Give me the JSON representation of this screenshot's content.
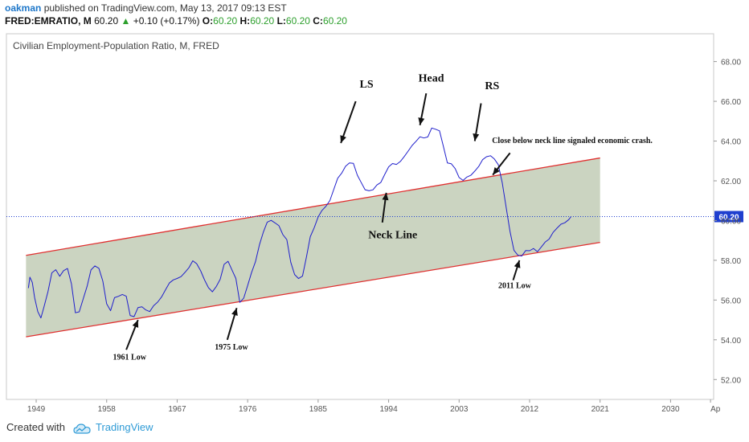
{
  "header": {
    "author": "oakman",
    "published_text": "published on TradingView.com, May 13, 2017 09:13 EST",
    "symbol": "FRED:EMRATIO, M",
    "last": "60.20",
    "change_arrow": "▲",
    "change": "+0.10 (+0.17%)",
    "o_label": "O:",
    "o_value": "60.20",
    "h_label": "H:",
    "h_value": "60.20",
    "l_label": "L:",
    "l_value": "60.20",
    "c_label": "C:",
    "c_value": "60.20"
  },
  "footer": {
    "created_with": "Created with",
    "brand": "TradingView"
  },
  "colors": {
    "series": "#1f1fcc",
    "channel_line": "#e03030",
    "channel_fill": "#c2cdb6",
    "price_badge": "#1f3fcf",
    "up": "#2ea02e"
  },
  "chart_data": {
    "type": "line",
    "title": "Civilian Employment-Population Ratio, M, FRED",
    "y_ticks": [
      "68.00",
      "66.00",
      "64.00",
      "62.00",
      "60.00",
      "58.00",
      "56.00",
      "54.00",
      "52.00"
    ],
    "ylim": [
      51.0,
      69.4
    ],
    "x_ticks": [
      "1949",
      "1958",
      "1967",
      "1976",
      "1985",
      "1994",
      "2003",
      "2012",
      "2021",
      "2030",
      "Ap"
    ],
    "xlim": [
      1945.2,
      2035.5
    ],
    "last_price_label": "60.20",
    "last_price": 60.2,
    "series": [
      {
        "x": [
          1948.0,
          1948.2,
          1948.5,
          1948.8,
          1949.2,
          1949.6,
          1950.0,
          1950.5,
          1951.0,
          1951.5,
          1952.0,
          1952.5,
          1953.0,
          1953.5,
          1954.0,
          1954.5,
          1955.0,
          1955.5,
          1956.0,
          1956.5,
          1957.0,
          1957.5,
          1958.0,
          1958.5,
          1959.0,
          1959.5,
          1960.0,
          1960.5,
          1961.0,
          1961.5,
          1962.0,
          1962.5,
          1963.0,
          1963.5,
          1964.0,
          1964.5,
          1965.0,
          1965.5,
          1966.0,
          1966.5,
          1967.0,
          1967.5,
          1968.0,
          1968.5,
          1969.0,
          1969.5,
          1970.0,
          1970.5,
          1971.0,
          1971.5,
          1972.0,
          1972.5,
          1973.0,
          1973.5,
          1974.0,
          1974.5,
          1975.0,
          1975.5,
          1976.0,
          1976.5,
          1977.0,
          1977.5,
          1978.0,
          1978.5,
          1979.0,
          1979.5,
          1980.0,
          1980.5,
          1981.0,
          1981.5,
          1982.0,
          1982.5,
          1983.0,
          1983.5,
          1984.0,
          1984.5,
          1985.0,
          1985.5,
          1986.0,
          1986.5,
          1987.0,
          1987.5,
          1988.0,
          1988.5,
          1989.0,
          1989.5,
          1990.0,
          1990.5,
          1991.0,
          1991.5,
          1992.0,
          1992.5,
          1993.0,
          1993.5,
          1994.0,
          1994.5,
          1995.0,
          1995.5,
          1996.0,
          1996.5,
          1997.0,
          1997.5,
          1998.0,
          1998.5,
          1999.0,
          1999.5,
          2000.0,
          2000.5,
          2001.0,
          2001.5,
          2002.0,
          2002.5,
          2003.0,
          2003.5,
          2004.0,
          2004.5,
          2005.0,
          2005.5,
          2006.0,
          2006.5,
          2007.0,
          2007.5,
          2008.0,
          2008.5,
          2009.0,
          2009.5,
          2010.0,
          2010.5,
          2011.0,
          2011.5,
          2012.0,
          2012.5,
          2013.0,
          2013.5,
          2014.0,
          2014.5,
          2015.0,
          2015.5,
          2016.0,
          2016.5,
          2017.0,
          2017.3
        ],
        "values": [
          56.6,
          57.1,
          56.8,
          56.0,
          55.3,
          55.0,
          55.6,
          56.4,
          57.4,
          57.6,
          57.3,
          57.6,
          57.7,
          56.9,
          55.4,
          55.4,
          56.0,
          56.6,
          57.4,
          57.6,
          57.5,
          56.9,
          55.8,
          55.5,
          56.2,
          56.3,
          56.4,
          56.3,
          55.3,
          55.2,
          55.6,
          55.6,
          55.4,
          55.3,
          55.6,
          55.8,
          56.1,
          56.5,
          56.9,
          57.1,
          57.2,
          57.3,
          57.5,
          57.7,
          58.0,
          57.8,
          57.4,
          56.9,
          56.5,
          56.3,
          56.6,
          57.0,
          57.8,
          58.0,
          57.6,
          57.2,
          56.0,
          56.2,
          56.8,
          57.4,
          57.9,
          58.7,
          59.3,
          59.8,
          59.9,
          59.8,
          59.7,
          59.3,
          59.1,
          58.0,
          57.4,
          57.2,
          57.3,
          58.2,
          59.2,
          59.6,
          60.1,
          60.4,
          60.6,
          60.9,
          61.5,
          62.1,
          62.4,
          62.8,
          63.0,
          63.0,
          62.4,
          62.0,
          61.6,
          61.5,
          61.5,
          61.7,
          61.8,
          62.2,
          62.6,
          62.8,
          62.8,
          63.0,
          63.3,
          63.6,
          63.9,
          64.1,
          64.3,
          64.2,
          64.2,
          64.6,
          64.5,
          64.4,
          63.6,
          62.8,
          62.8,
          62.6,
          62.2,
          62.1,
          62.3,
          62.4,
          62.6,
          62.8,
          63.1,
          63.2,
          63.2,
          63.0,
          62.7,
          61.8,
          60.6,
          59.4,
          58.5,
          58.3,
          58.3,
          58.6,
          58.6,
          58.7,
          58.5,
          58.7,
          58.9,
          59.0,
          59.3,
          59.5,
          59.7,
          59.8,
          60.0,
          60.2
        ]
      }
    ],
    "channel": {
      "upper": {
        "x": [
          1947.7,
          2021.0
        ],
        "y": [
          58.25,
          63.15
        ]
      },
      "lower": {
        "x": [
          1947.7,
          2021.0
        ],
        "y": [
          54.15,
          58.9
        ]
      }
    },
    "annotations": [
      {
        "text": "LS",
        "x": 1990.3,
        "y": 66.7,
        "arrow_from": [
          1989.8,
          66.0
        ],
        "arrow_to": [
          1987.9,
          63.9
        ]
      },
      {
        "text": "Head",
        "x": 1997.8,
        "y": 67.0,
        "arrow_from": [
          1998.8,
          66.4
        ],
        "arrow_to": [
          1998.0,
          64.8
        ]
      },
      {
        "text": "RS",
        "x": 2006.3,
        "y": 66.6,
        "arrow_from": [
          2005.8,
          65.9
        ],
        "arrow_to": [
          2005.0,
          64.0
        ]
      },
      {
        "text": "Close below neck line signaled economic crash.",
        "x": 2007.2,
        "y": 63.9,
        "small": true,
        "arrow_from": [
          2009.5,
          63.4
        ],
        "arrow_to": [
          2007.3,
          62.3
        ]
      },
      {
        "text": "Neck Line",
        "x": 1991.4,
        "y": 59.1,
        "arrow_from": [
          1993.2,
          59.9
        ],
        "arrow_to": [
          1993.7,
          61.4
        ]
      },
      {
        "text": "1961 Low",
        "x": 1958.8,
        "y": 53.0,
        "small": true,
        "arrow_from": [
          1960.5,
          53.5
        ],
        "arrow_to": [
          1962.0,
          55.0
        ]
      },
      {
        "text": "1975 Low",
        "x": 1971.8,
        "y": 53.5,
        "small": true,
        "arrow_from": [
          1973.4,
          54.0
        ],
        "arrow_to": [
          1974.6,
          55.6
        ]
      },
      {
        "text": "2011 Low",
        "x": 2008.0,
        "y": 56.6,
        "small": true,
        "arrow_from": [
          2009.9,
          57.0
        ],
        "arrow_to": [
          2010.7,
          58.0
        ]
      }
    ]
  }
}
